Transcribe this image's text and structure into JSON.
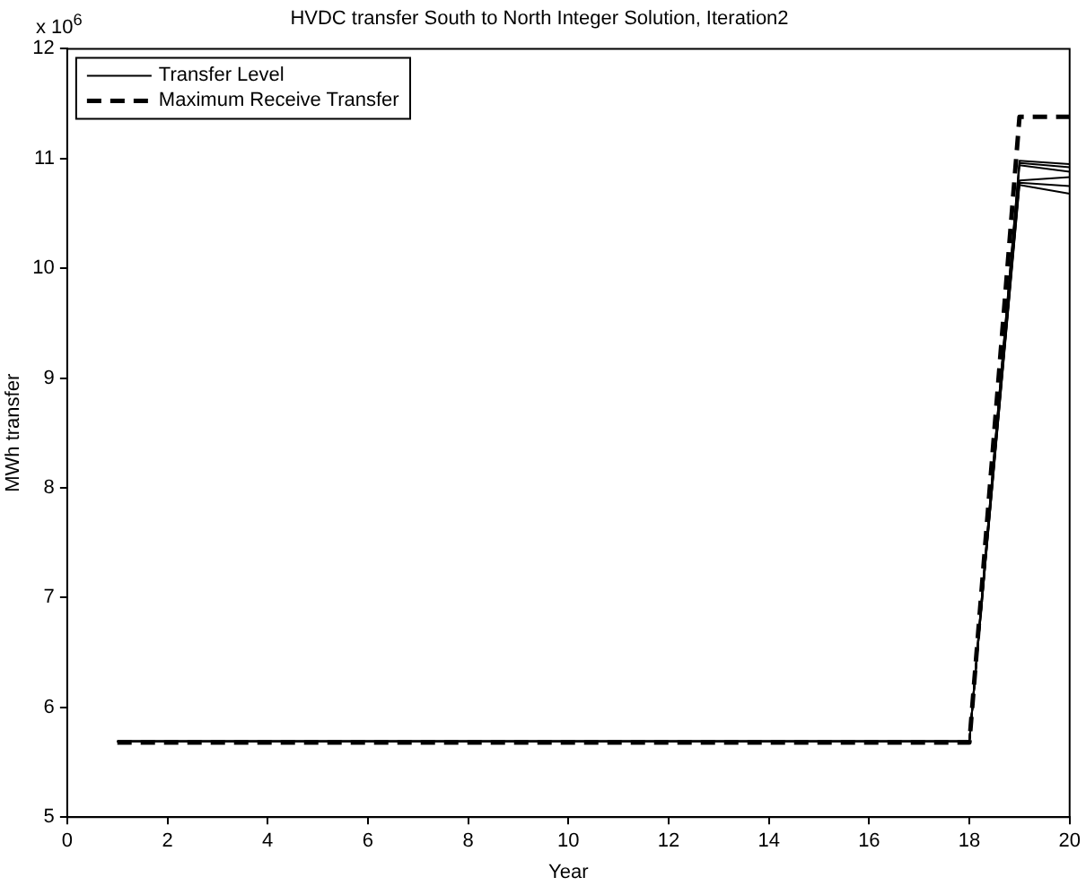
{
  "chart_data": {
    "type": "line",
    "title": "HVDC transfer South to North Integer Solution, Iteration2",
    "xlabel": "Year",
    "ylabel": "MWh transfer",
    "annotations": [
      "x 10$^{6}$"
    ],
    "x": [
      1,
      2,
      3,
      4,
      5,
      6,
      7,
      8,
      9,
      10,
      11,
      12,
      13,
      14,
      15,
      16,
      17,
      18,
      19,
      20
    ],
    "series": [
      {
        "name": "Transfer Level",
        "color": "#000000",
        "line_style": "solid",
        "values": [
          5.69,
          5.69,
          5.69,
          5.69,
          5.69,
          5.69,
          5.69,
          5.69,
          5.69,
          5.69,
          5.69,
          5.69,
          5.69,
          5.69,
          5.69,
          5.69,
          5.69,
          5.69,
          10.98,
          10.95
        ]
      },
      {
        "color": "#000000",
        "line_style": "solid",
        "values": [
          5.69,
          5.69,
          5.69,
          5.69,
          5.69,
          5.69,
          5.69,
          5.69,
          5.69,
          5.69,
          5.69,
          5.69,
          5.69,
          5.69,
          5.69,
          5.69,
          5.69,
          5.69,
          10.96,
          10.92
        ]
      },
      {
        "color": "#000000",
        "line_style": "solid",
        "values": [
          5.69,
          5.69,
          5.69,
          5.69,
          5.69,
          5.69,
          5.69,
          5.69,
          5.69,
          5.69,
          5.69,
          5.69,
          5.69,
          5.69,
          5.69,
          5.69,
          5.69,
          5.69,
          10.94,
          10.88
        ]
      },
      {
        "color": "#000000",
        "line_style": "solid",
        "values": [
          5.69,
          5.69,
          5.69,
          5.69,
          5.69,
          5.69,
          5.69,
          5.69,
          5.69,
          5.69,
          5.69,
          5.69,
          5.69,
          5.69,
          5.69,
          5.69,
          5.69,
          5.69,
          10.8,
          10.83
        ]
      },
      {
        "color": "#000000",
        "line_style": "solid",
        "values": [
          5.69,
          5.69,
          5.69,
          5.69,
          5.69,
          5.69,
          5.69,
          5.69,
          5.69,
          5.69,
          5.69,
          5.69,
          5.69,
          5.69,
          5.69,
          5.69,
          5.69,
          5.69,
          10.78,
          10.75
        ]
      },
      {
        "color": "#000000",
        "line_style": "solid",
        "values": [
          5.69,
          5.69,
          5.69,
          5.69,
          5.69,
          5.69,
          5.69,
          5.69,
          5.69,
          5.69,
          5.69,
          5.69,
          5.69,
          5.69,
          5.69,
          5.69,
          5.69,
          5.69,
          10.76,
          10.68
        ]
      },
      {
        "name": "Maximum Receive Transfer",
        "color": "#000000",
        "line_style": "dashed",
        "values": [
          5.68,
          5.68,
          5.68,
          5.68,
          5.68,
          5.68,
          5.68,
          5.68,
          5.68,
          5.68,
          5.68,
          5.68,
          5.68,
          5.68,
          5.68,
          5.68,
          5.68,
          5.68,
          11.38,
          11.38
        ]
      }
    ],
    "xlim": [
      0,
      20
    ],
    "xticks": [
      0,
      2,
      4,
      6,
      8,
      10,
      12,
      14,
      16,
      18,
      20
    ],
    "ylim": [
      5,
      12
    ],
    "yticks": [
      5,
      6,
      7,
      8,
      9,
      10,
      11,
      12
    ],
    "grid": false,
    "legend": "top left",
    "marker": "none"
  }
}
